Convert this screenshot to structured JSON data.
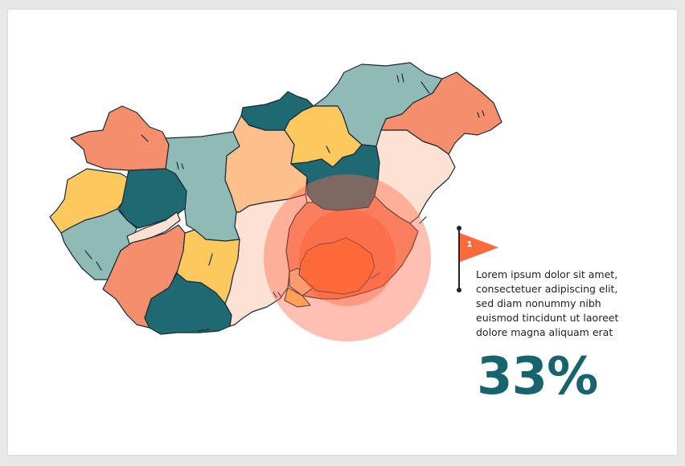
{
  "colors": {
    "teal_dark": "#1f6a72",
    "teal_light": "#8fbab6",
    "coral": "#f58e6c",
    "peach": "#fdbf8c",
    "yellow": "#fdc95f",
    "cream": "#fde2d3",
    "highlight": "#ff6a3d",
    "stat": "#17646e"
  },
  "map": {
    "icon": "map-of-hungary",
    "highlighted_region": "south-east"
  },
  "marker": {
    "number": "1",
    "icon": "flag-icon"
  },
  "description": "Lorem ipsum dolor sit amet,\nconsectetuer adipiscing elit,\nsed diam nonummy nibh\neuismod tincidunt ut laoreet\ndolore magna aliquam erat",
  "stat_value": "33%"
}
